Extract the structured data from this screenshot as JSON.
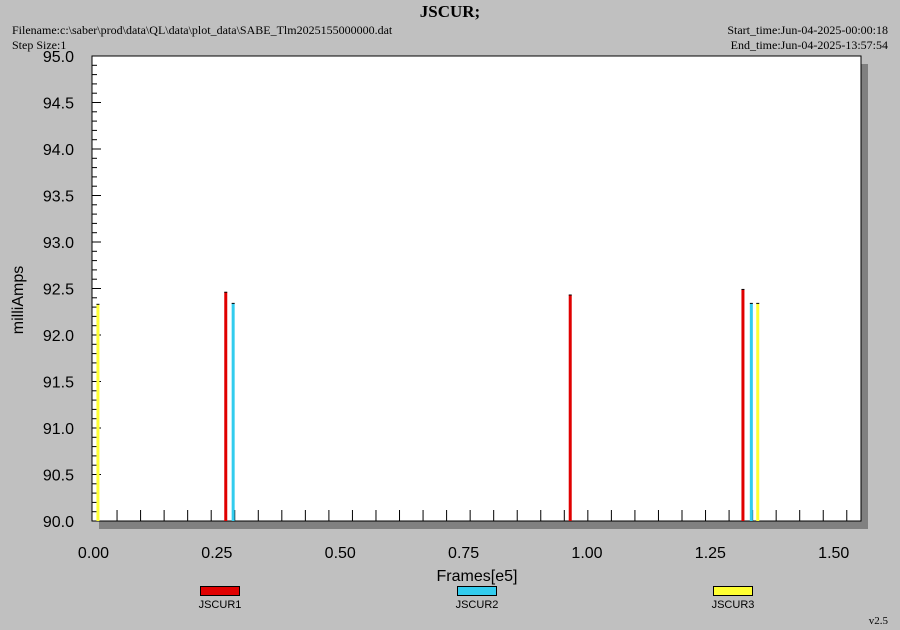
{
  "header": {
    "title": "JSCUR;",
    "filename": "Filename:c:\\saber\\prod\\data\\QL\\data\\plot_data\\SABE_Tlm2025155000000.dat",
    "step_size": "Step Size:1",
    "start_time": "Start_time:Jun-04-2025-00:00:18",
    "end_time": "End_time:Jun-04-2025-13:57:54"
  },
  "footer": {
    "version": "v2.5"
  },
  "chart_data": {
    "type": "bar",
    "title": "JSCUR;",
    "xlabel": "Frames[e5]",
    "ylabel": "milliAmps",
    "xlim": [
      0.0,
      1.57
    ],
    "ylim": [
      90.0,
      95.0
    ],
    "x_ticks": [
      "0.00",
      "0.25",
      "0.50",
      "0.75",
      "1.00",
      "1.25",
      "1.50"
    ],
    "y_ticks": [
      "90.0",
      "90.5",
      "91.0",
      "91.5",
      "92.0",
      "92.5",
      "93.0",
      "93.5",
      "94.0",
      "94.5",
      "95.0"
    ],
    "legend_position": "bottom",
    "grid": false,
    "series": [
      {
        "name": "JSCUR1",
        "color": "#e00000",
        "points": [
          {
            "x": 0.268,
            "y": 92.46
          },
          {
            "x": 0.966,
            "y": 92.43
          },
          {
            "x": 1.316,
            "y": 92.49
          }
        ]
      },
      {
        "name": "JSCUR2",
        "color": "#33ccee",
        "points": [
          {
            "x": 0.283,
            "y": 92.34
          },
          {
            "x": 1.333,
            "y": 92.34
          }
        ]
      },
      {
        "name": "JSCUR3",
        "color": "#ffff33",
        "points": [
          {
            "x": 0.009,
            "y": 92.33
          },
          {
            "x": 1.346,
            "y": 92.34
          }
        ]
      }
    ]
  }
}
